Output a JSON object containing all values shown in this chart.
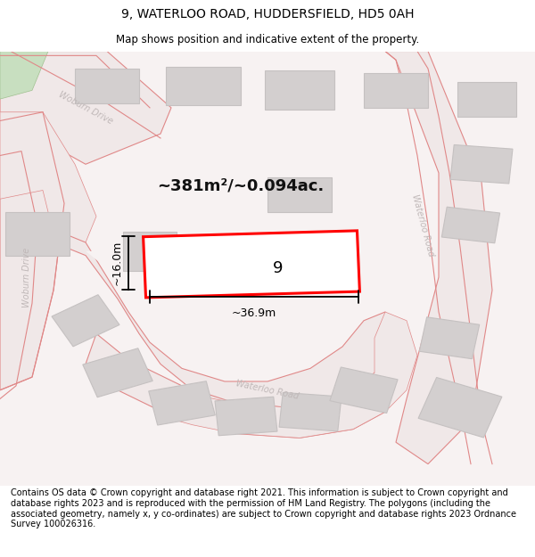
{
  "title": "9, WATERLOO ROAD, HUDDERSFIELD, HD5 0AH",
  "subtitle": "Map shows position and indicative extent of the property.",
  "footer": "Contains OS data © Crown copyright and database right 2021. This information is subject to Crown copyright and database rights 2023 and is reproduced with the permission of HM Land Registry. The polygons (including the associated geometry, namely x, y co-ordinates) are subject to Crown copyright and database rights 2023 Ordnance Survey 100026316.",
  "area_text": "~381m²/~0.094ac.",
  "dim_width": "~36.9m",
  "dim_height": "~16.0m",
  "label_number": "9",
  "title_fontsize": 10,
  "subtitle_fontsize": 8.5,
  "footer_fontsize": 7.0,
  "map_bg": "#f7f2f2",
  "road_fill": "#f0e8e8",
  "road_edge": "#e08888",
  "block_color": "#d3cfcf",
  "block_edge": "#c5c1c1",
  "highlight_color": "#ff0000",
  "green_color": "#c8dfc0",
  "dim_color": "#000000",
  "road_label_color": "#c0b8b8",
  "text_color": "#000000"
}
